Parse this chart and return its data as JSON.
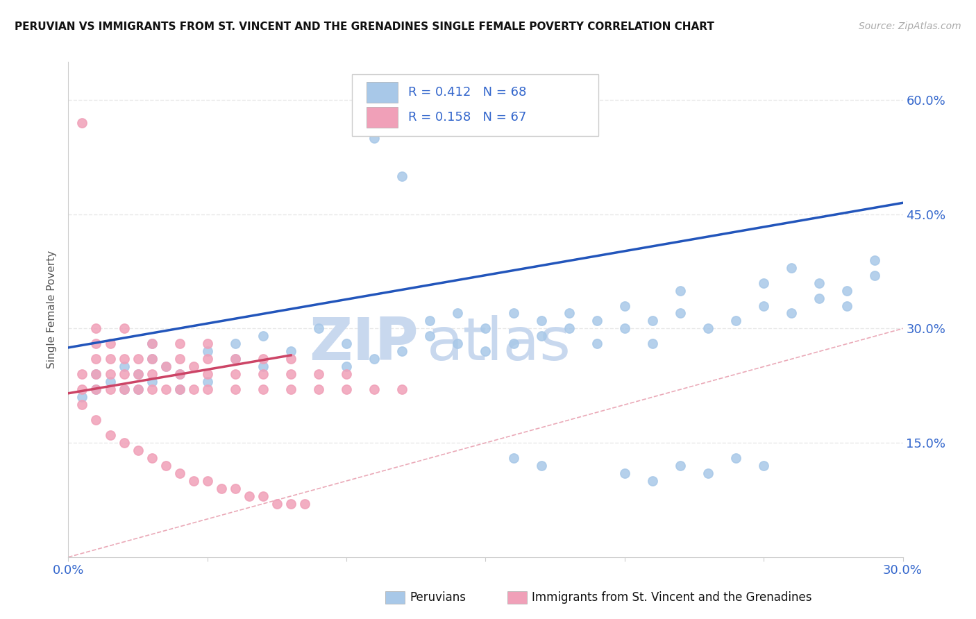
{
  "title": "PERUVIAN VS IMMIGRANTS FROM ST. VINCENT AND THE GRENADINES SINGLE FEMALE POVERTY CORRELATION CHART",
  "source": "Source: ZipAtlas.com",
  "ylabel": "Single Female Poverty",
  "watermark_zip": "ZIP",
  "watermark_atlas": "atlas",
  "blue_R": 0.412,
  "blue_N": 68,
  "pink_R": 0.158,
  "pink_N": 67,
  "blue_dot_color": "#a8c8e8",
  "pink_dot_color": "#f0a0b8",
  "blue_line_color": "#2255bb",
  "pink_line_color": "#cc4466",
  "ref_line_color": "#e8a0b0",
  "legend_text_color": "#3366cc",
  "watermark_color": "#c8d8ee",
  "grid_color": "#e8e8e8",
  "title_color": "#111111",
  "source_color": "#aaaaaa",
  "ylabel_color": "#555555",
  "axis_label_color": "#3366cc",
  "bottom_legend_color": "#111111",
  "xlim": [
    0.0,
    0.3
  ],
  "ylim": [
    0.0,
    0.65
  ],
  "ytick_vals": [
    0.15,
    0.3,
    0.45,
    0.6
  ],
  "ytick_labels": [
    "15.0%",
    "30.0%",
    "45.0%",
    "60.0%"
  ],
  "blue_line_x0": 0.0,
  "blue_line_y0": 0.275,
  "blue_line_x1": 0.3,
  "blue_line_y1": 0.465,
  "pink_line_x0": 0.0,
  "pink_line_x1": 0.08,
  "pink_line_y0": 0.215,
  "pink_line_y1": 0.265,
  "blue_scatter_x": [
    0.005,
    0.01,
    0.01,
    0.015,
    0.02,
    0.02,
    0.025,
    0.025,
    0.03,
    0.03,
    0.03,
    0.035,
    0.04,
    0.04,
    0.05,
    0.05,
    0.06,
    0.06,
    0.07,
    0.07,
    0.08,
    0.09,
    0.1,
    0.1,
    0.11,
    0.12,
    0.13,
    0.13,
    0.14,
    0.14,
    0.15,
    0.15,
    0.16,
    0.16,
    0.17,
    0.17,
    0.18,
    0.18,
    0.19,
    0.19,
    0.2,
    0.2,
    0.21,
    0.21,
    0.22,
    0.22,
    0.23,
    0.24,
    0.25,
    0.25,
    0.26,
    0.27,
    0.27,
    0.28,
    0.28,
    0.29,
    0.29,
    0.11,
    0.12,
    0.16,
    0.17,
    0.2,
    0.21,
    0.22,
    0.23,
    0.24,
    0.25,
    0.26
  ],
  "blue_scatter_y": [
    0.21,
    0.22,
    0.24,
    0.23,
    0.22,
    0.25,
    0.24,
    0.22,
    0.23,
    0.26,
    0.28,
    0.25,
    0.22,
    0.24,
    0.23,
    0.27,
    0.26,
    0.28,
    0.25,
    0.29,
    0.27,
    0.3,
    0.28,
    0.25,
    0.26,
    0.27,
    0.29,
    0.31,
    0.28,
    0.32,
    0.27,
    0.3,
    0.28,
    0.32,
    0.29,
    0.31,
    0.3,
    0.32,
    0.28,
    0.31,
    0.3,
    0.33,
    0.28,
    0.31,
    0.32,
    0.35,
    0.3,
    0.31,
    0.33,
    0.36,
    0.32,
    0.34,
    0.36,
    0.33,
    0.35,
    0.37,
    0.39,
    0.55,
    0.5,
    0.13,
    0.12,
    0.11,
    0.1,
    0.12,
    0.11,
    0.13,
    0.12,
    0.38
  ],
  "pink_scatter_x": [
    0.005,
    0.005,
    0.005,
    0.01,
    0.01,
    0.01,
    0.01,
    0.01,
    0.015,
    0.015,
    0.015,
    0.015,
    0.02,
    0.02,
    0.02,
    0.02,
    0.025,
    0.025,
    0.025,
    0.03,
    0.03,
    0.03,
    0.03,
    0.035,
    0.035,
    0.04,
    0.04,
    0.04,
    0.04,
    0.045,
    0.045,
    0.05,
    0.05,
    0.05,
    0.05,
    0.06,
    0.06,
    0.06,
    0.07,
    0.07,
    0.07,
    0.08,
    0.08,
    0.08,
    0.09,
    0.09,
    0.1,
    0.1,
    0.11,
    0.12,
    0.005,
    0.01,
    0.015,
    0.02,
    0.025,
    0.03,
    0.035,
    0.04,
    0.045,
    0.05,
    0.055,
    0.06,
    0.065,
    0.07,
    0.075,
    0.08,
    0.085
  ],
  "pink_scatter_y": [
    0.22,
    0.24,
    0.57,
    0.22,
    0.24,
    0.26,
    0.28,
    0.3,
    0.22,
    0.24,
    0.26,
    0.28,
    0.22,
    0.24,
    0.26,
    0.3,
    0.22,
    0.24,
    0.26,
    0.22,
    0.24,
    0.26,
    0.28,
    0.22,
    0.25,
    0.22,
    0.24,
    0.26,
    0.28,
    0.22,
    0.25,
    0.22,
    0.24,
    0.26,
    0.28,
    0.22,
    0.24,
    0.26,
    0.22,
    0.24,
    0.26,
    0.22,
    0.24,
    0.26,
    0.22,
    0.24,
    0.22,
    0.24,
    0.22,
    0.22,
    0.2,
    0.18,
    0.16,
    0.15,
    0.14,
    0.13,
    0.12,
    0.11,
    0.1,
    0.1,
    0.09,
    0.09,
    0.08,
    0.08,
    0.07,
    0.07,
    0.07
  ]
}
